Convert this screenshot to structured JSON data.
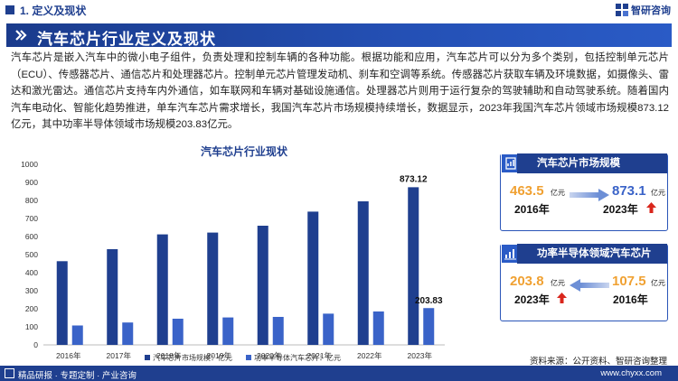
{
  "header": {
    "section_label": "1. 定义及现状",
    "brand_name": "智研咨询"
  },
  "banner": {
    "title": "汽车芯片行业定义及现状"
  },
  "intro": {
    "paragraph": "汽车芯片是嵌入汽车中的微小电子组件，负责处理和控制车辆的各种功能。根据功能和应用，汽车芯片可以分为多个类别，包括控制单元芯片（ECU）、传感器芯片、通信芯片和处理器芯片。控制单元芯片管理发动机、刹车和空调等系统。传感器芯片获取车辆及环境数据，如摄像头、雷达和激光雷达。通信芯片支持车内外通信，如车联网和车辆对基础设施通信。处理器芯片则用于运行复杂的驾驶辅助和自动驾驶系统。随着国内汽车电动化、智能化趋势推进，单车汽车芯片需求增长，我国汽车芯片市场规模持续增长，数据显示，2023年我国汽车芯片领域市场规模873.12亿元，其中功率半导体领域市场规模203.83亿元。"
  },
  "chart_data": {
    "type": "bar",
    "title": "汽车芯片行业现状",
    "categories": [
      "2016年",
      "2017年",
      "2018年",
      "2019年",
      "2020年",
      "2021年",
      "2022年",
      "2023年"
    ],
    "series": [
      {
        "name": "汽车芯片市场规模：亿元",
        "color": "#1f3f8f",
        "values": [
          463.5,
          530,
          612,
          622,
          660,
          738,
          795,
          873.12
        ]
      },
      {
        "name": "功率半导体汽车芯片：亿元",
        "color": "#3a63c8",
        "values": [
          107.5,
          124,
          145,
          152,
          155,
          173,
          185,
          203.83
        ]
      }
    ],
    "data_labels": [
      "873.12",
      "203.83"
    ],
    "ylim": [
      0,
      1000
    ],
    "yticks": [
      0,
      100,
      200,
      300,
      400,
      500,
      600,
      700,
      800,
      900,
      1000
    ],
    "ytick_labels": [
      "0",
      "100",
      "200",
      "300",
      "400",
      "500",
      "600",
      "700",
      "800",
      "900",
      "1000"
    ],
    "grid": false,
    "legend": "bottom"
  },
  "card_market": {
    "title": "汽车芯片市场规模",
    "left_value": "463.5",
    "left_unit": "亿元",
    "left_year": "2016年",
    "right_value": "873.1",
    "right_unit": "亿元",
    "right_year": "2023年",
    "left_color": "#f0a132",
    "right_color": "#3a63c8"
  },
  "card_power": {
    "title": "功率半导体领域汽车芯片",
    "left_value": "203.8",
    "left_unit": "亿元",
    "left_year": "2023年",
    "right_value": "107.5",
    "right_unit": "亿元",
    "right_year": "2016年",
    "left_color": "#f0a132",
    "right_color": "#f0a132"
  },
  "source": "资料来源：公开资料、智研咨询整理",
  "footer": {
    "left": "精品研报 · 专题定制 · 产业咨询",
    "right": "www.chyxx.com"
  },
  "accent_color": "#1f3f8f",
  "up_arrow_color": "#d9261c"
}
